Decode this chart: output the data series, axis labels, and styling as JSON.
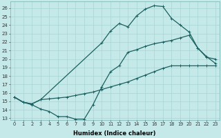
{
  "xlabel": "Humidex (Indice chaleur)",
  "bg_color": "#c5e8e8",
  "line_color": "#1a6060",
  "grid_color": "#a8d4d4",
  "xlim": [
    -0.5,
    23.5
  ],
  "ylim": [
    12.8,
    26.8
  ],
  "xticks": [
    0,
    1,
    2,
    3,
    4,
    5,
    6,
    7,
    8,
    9,
    10,
    11,
    12,
    13,
    14,
    15,
    16,
    17,
    18,
    19,
    20,
    21,
    22,
    23
  ],
  "yticks": [
    13,
    14,
    15,
    16,
    17,
    18,
    19,
    20,
    21,
    22,
    23,
    24,
    25,
    26
  ],
  "line1_x": [
    0,
    1,
    2,
    3,
    4,
    5,
    6,
    7,
    8,
    9,
    10,
    11,
    12,
    13,
    14,
    15,
    16,
    17,
    18,
    19,
    20,
    21,
    22,
    23
  ],
  "line1_y": [
    15.5,
    14.9,
    14.6,
    14.1,
    13.8,
    13.2,
    13.2,
    12.9,
    12.9,
    14.6,
    16.7,
    18.5,
    19.2,
    20.8,
    21.1,
    21.5,
    21.8,
    22.0,
    22.2,
    22.5,
    22.8,
    21.3,
    20.3,
    19.5
  ],
  "line2_x": [
    0,
    1,
    2,
    3,
    4,
    5,
    6,
    7,
    8,
    9,
    10,
    11,
    12,
    13,
    14,
    15,
    16,
    17,
    18,
    19,
    20,
    21,
    22,
    23
  ],
  "line2_y": [
    15.5,
    14.9,
    14.7,
    15.2,
    15.3,
    15.4,
    15.5,
    15.7,
    15.9,
    16.1,
    16.4,
    16.7,
    17.0,
    17.3,
    17.7,
    18.1,
    18.5,
    18.9,
    19.2,
    19.2,
    19.2,
    19.2,
    19.2,
    19.2
  ],
  "line3_x": [
    0,
    1,
    2,
    3,
    10,
    11,
    12,
    13,
    14,
    15,
    16,
    17,
    18,
    19,
    20,
    21,
    22,
    23
  ],
  "line3_y": [
    15.5,
    14.9,
    14.7,
    15.2,
    21.9,
    23.3,
    24.2,
    23.8,
    25.1,
    25.9,
    26.3,
    26.2,
    24.8,
    24.0,
    23.2,
    21.3,
    20.2,
    20.0
  ]
}
